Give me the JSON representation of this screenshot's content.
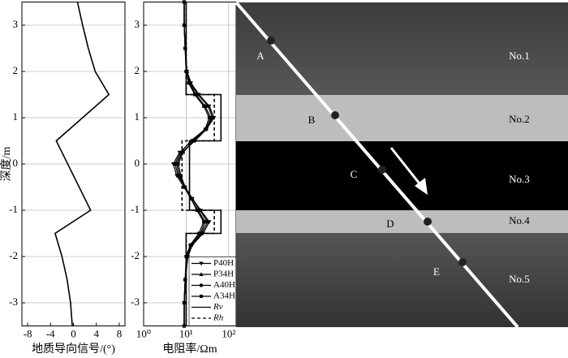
{
  "chart_data": [
    {
      "type": "line",
      "xlabel": "地质导向信号/(°)",
      "ylabel": "深度/m",
      "xlim": [
        -9,
        9
      ],
      "xticks": [
        -8,
        -4,
        0,
        4,
        8
      ],
      "ylim": [
        -3.5,
        3.5
      ],
      "yticks": [
        -3,
        -2,
        -1,
        0,
        1,
        2,
        3
      ],
      "grid": true,
      "series": [
        {
          "color": "#000000",
          "style": "solid",
          "y": [
            3.5,
            3,
            2.5,
            2,
            1.5,
            0.5,
            -1,
            -1.5,
            -2,
            -2.5,
            -3,
            -3.5
          ],
          "values": [
            0.7,
            1.6,
            2.6,
            3.8,
            6.2,
            -3,
            3,
            -3.2,
            -2,
            -1.1,
            -0.5,
            -0.2
          ]
        }
      ]
    },
    {
      "type": "line",
      "xlabel": "电阻率/Ωm",
      "xscale": "log",
      "xlim": [
        1,
        150
      ],
      "xticks": [
        {
          "value": 1,
          "label": "10⁰"
        },
        {
          "value": 10,
          "label": "10¹"
        },
        {
          "value": 100,
          "label": "10²"
        }
      ],
      "ylim": [
        -3.5,
        3.5
      ],
      "yticks": [
        -3,
        -2,
        -1,
        0,
        1,
        2,
        3
      ],
      "grid": true,
      "legend": "lower right",
      "series": [
        {
          "name": "P40H",
          "color": "#000000",
          "style": "solid",
          "marker": "triangle-down",
          "y": [
            3.5,
            3,
            2.5,
            2,
            1.75,
            1.5,
            1.25,
            1,
            0.75,
            0.5,
            0.25,
            0,
            -0.25,
            -0.5,
            -0.75,
            -1,
            -1.25,
            -1.5,
            -1.75,
            -2,
            -2.5,
            -3,
            -3.5
          ],
          "values": [
            9,
            9,
            9.5,
            10.5,
            13,
            20,
            35,
            45,
            30,
            14,
            7,
            5,
            6,
            9,
            14,
            22,
            35,
            25,
            14,
            11,
            9.5,
            9,
            9
          ]
        },
        {
          "name": "P34H",
          "color": "#000000",
          "style": "solid",
          "marker": "triangle-up",
          "y": [
            3.5,
            3,
            2.5,
            2,
            1.75,
            1.5,
            1.25,
            1,
            0.75,
            0.5,
            0.25,
            0,
            -0.25,
            -0.5,
            -0.75,
            -1,
            -1.25,
            -1.5,
            -1.75,
            -2,
            -2.5,
            -3,
            -3.5
          ],
          "values": [
            9,
            9,
            9.5,
            10.5,
            12.5,
            19,
            33,
            42,
            28,
            13,
            7.5,
            5.5,
            6.5,
            9.5,
            14,
            21,
            32,
            23,
            13,
            10.5,
            9.5,
            9,
            9
          ]
        },
        {
          "name": "A40H",
          "color": "#000000",
          "style": "solid",
          "marker": "circle",
          "y": [
            3.5,
            3,
            2.5,
            2,
            1.75,
            1.5,
            1.25,
            1,
            0.75,
            0.5,
            0.25,
            0,
            -0.25,
            -0.5,
            -0.75,
            -1,
            -1.25,
            -1.5,
            -1.75,
            -2,
            -2.5,
            -3,
            -3.5
          ],
          "values": [
            9,
            9,
            9.5,
            10,
            12,
            17,
            28,
            38,
            30,
            16,
            8,
            6,
            7,
            9,
            13,
            19,
            28,
            22,
            13,
            10.5,
            9.5,
            9,
            9
          ]
        },
        {
          "name": "A34H",
          "color": "#000000",
          "style": "solid",
          "marker": "square",
          "y": [
            3.5,
            3,
            2.5,
            2,
            1.75,
            1.5,
            1.25,
            1,
            0.75,
            0.5,
            0.25,
            0,
            -0.25,
            -0.5,
            -0.75,
            -1,
            -1.25,
            -1.5,
            -1.75,
            -2,
            -2.5,
            -3,
            -3.5
          ],
          "values": [
            9,
            9,
            9.5,
            10,
            11.5,
            16,
            26,
            35,
            28,
            15,
            8.5,
            6.5,
            7.5,
            9.5,
            13,
            18,
            26,
            20,
            12.5,
            10,
            9.5,
            9,
            9
          ]
        },
        {
          "name": "Rv",
          "color": "#000000",
          "style": "solid",
          "y": [
            3.5,
            1.5,
            1.5,
            0.5,
            0.5,
            -1,
            -1,
            -1.5,
            -1.5,
            -3.5
          ],
          "values": [
            10,
            10,
            66,
            66,
            12,
            12,
            66,
            66,
            10,
            10
          ]
        },
        {
          "name": "Rh",
          "color": "#000000",
          "style": "dashed",
          "y": [
            3.5,
            1.5,
            1.5,
            0.5,
            0.5,
            -1,
            -1,
            -1.5,
            -1.5,
            -3.5
          ],
          "values": [
            10,
            10,
            46,
            46,
            8,
            8,
            46,
            46,
            10,
            10
          ]
        }
      ]
    }
  ],
  "diagram": {
    "layers": [
      "No.1",
      "No.2",
      "No.3",
      "No.4",
      "No.5"
    ],
    "points": [
      "A",
      "B",
      "C",
      "D",
      "E"
    ]
  }
}
